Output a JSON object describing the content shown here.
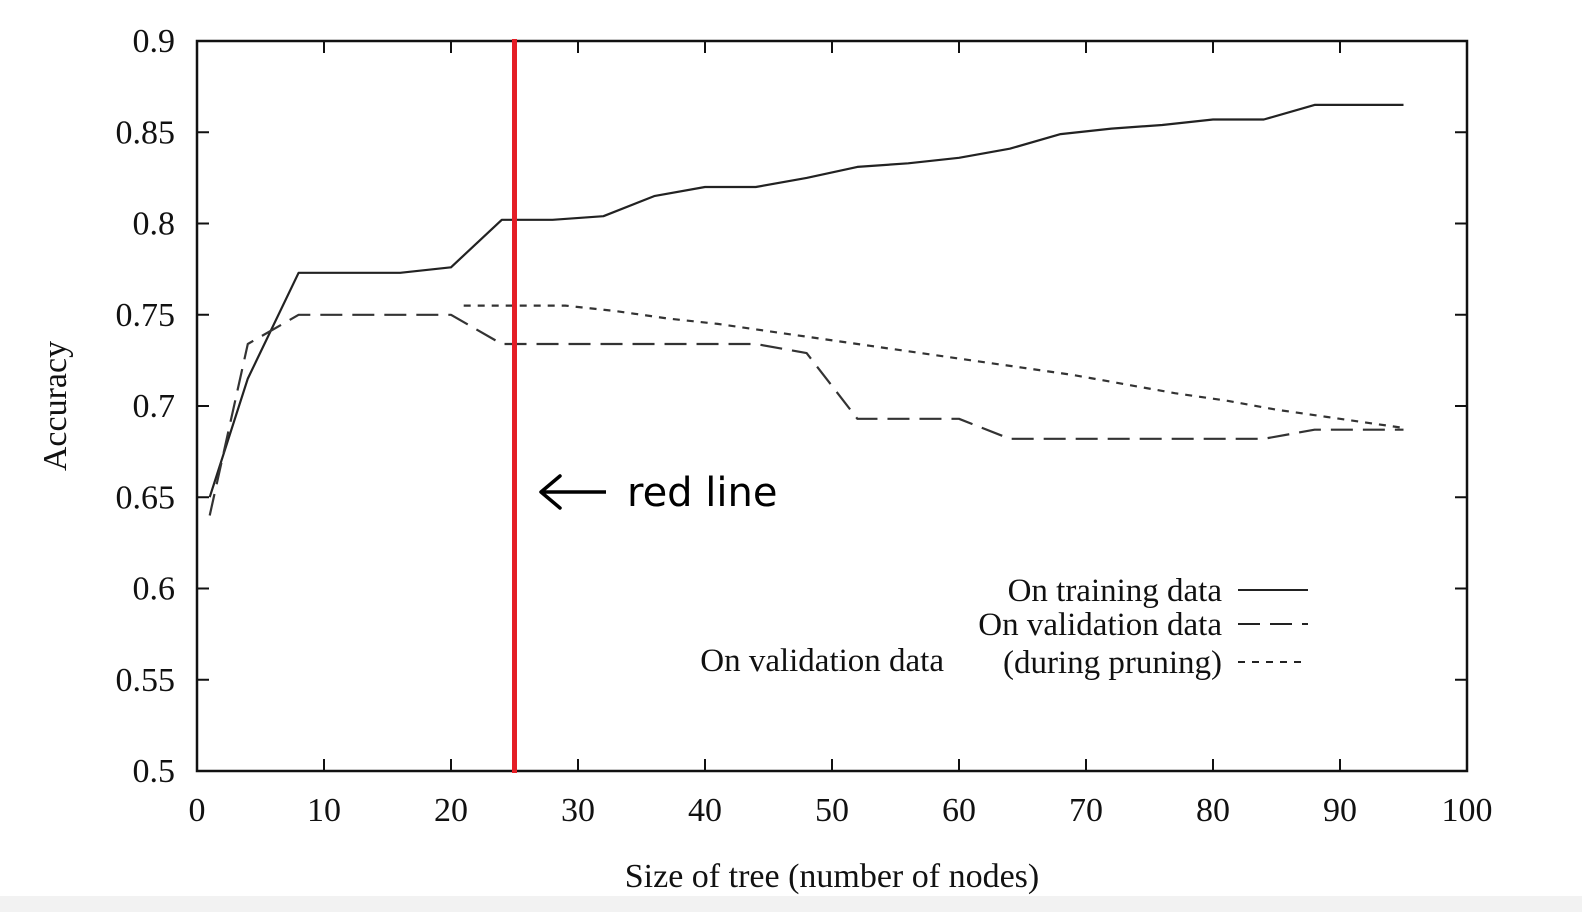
{
  "chart_data": {
    "type": "line",
    "title": "",
    "xlabel": "Size of tree (number of nodes)",
    "ylabel": "Accuracy",
    "xlim": [
      0,
      100
    ],
    "ylim": [
      0.5,
      0.9
    ],
    "x_ticks": [
      0,
      10,
      20,
      30,
      40,
      50,
      60,
      70,
      80,
      90,
      100
    ],
    "x_tick_labels": [
      "0",
      "10",
      "20",
      "30",
      "40",
      "50",
      "60",
      "70",
      "80",
      "90",
      "100"
    ],
    "y_ticks": [
      0.5,
      0.55,
      0.6,
      0.65,
      0.7,
      0.75,
      0.8,
      0.85,
      0.9
    ],
    "y_tick_labels": [
      "0.5",
      "0.55",
      "0.6",
      "0.65",
      "0.7",
      "0.75",
      "0.8",
      "0.85",
      "0.9"
    ],
    "grid": false,
    "legend_placement": "bottom-right",
    "series": [
      {
        "name": "On training data",
        "style": "solid",
        "color": "#222222",
        "x": [
          1,
          4,
          8,
          12,
          16,
          20,
          24,
          28,
          32,
          36,
          40,
          44,
          48,
          52,
          56,
          60,
          64,
          68,
          72,
          76,
          80,
          84,
          88,
          92,
          95
        ],
        "y": [
          0.65,
          0.715,
          0.773,
          0.773,
          0.773,
          0.776,
          0.802,
          0.802,
          0.804,
          0.815,
          0.82,
          0.82,
          0.825,
          0.831,
          0.833,
          0.836,
          0.841,
          0.849,
          0.852,
          0.854,
          0.857,
          0.857,
          0.865,
          0.865,
          0.865
        ]
      },
      {
        "name": "On validation data",
        "style": "dashed",
        "color": "#333333",
        "x": [
          1,
          4,
          8,
          12,
          16,
          20,
          24,
          28,
          32,
          36,
          40,
          44,
          48,
          52,
          56,
          60,
          64,
          68,
          72,
          76,
          80,
          84,
          88,
          92,
          95
        ],
        "y": [
          0.64,
          0.734,
          0.75,
          0.75,
          0.75,
          0.75,
          0.734,
          0.734,
          0.734,
          0.734,
          0.734,
          0.734,
          0.729,
          0.693,
          0.693,
          0.693,
          0.682,
          0.682,
          0.682,
          0.682,
          0.682,
          0.682,
          0.687,
          0.687,
          0.687
        ]
      },
      {
        "name": "On validation data (during pruning)",
        "style": "dotted",
        "color": "#333333",
        "x": [
          21,
          25,
          29,
          33,
          37,
          41,
          45,
          49,
          53,
          57,
          61,
          65,
          69,
          73,
          77,
          81,
          85,
          89,
          93,
          95
        ],
        "y": [
          0.755,
          0.755,
          0.755,
          0.752,
          0.748,
          0.745,
          0.741,
          0.737,
          0.733,
          0.729,
          0.725,
          0.721,
          0.717,
          0.712,
          0.707,
          0.703,
          0.698,
          0.694,
          0.69,
          0.688
        ]
      }
    ],
    "legend": {
      "entries": [
        {
          "label": "On training data",
          "style": "solid"
        },
        {
          "label": "On validation data",
          "style": "dashed"
        },
        {
          "label_left": "On validation data",
          "label_right": "(during pruning)",
          "style": "dotted"
        }
      ]
    },
    "marker_line": {
      "x": 25,
      "color": "#e41e26"
    },
    "annotation": {
      "text": "red line",
      "arrow": "←",
      "color": "#000000"
    }
  }
}
